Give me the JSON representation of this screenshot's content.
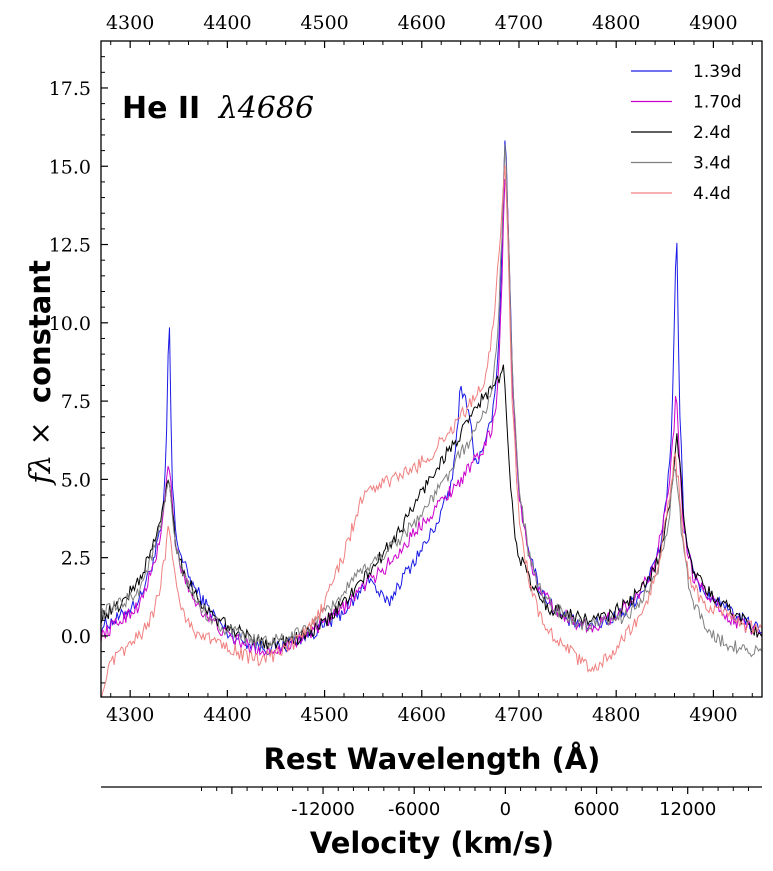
{
  "chart_data": {
    "type": "line",
    "title": "He II",
    "title_math": "λ4686",
    "xlabel": "Rest Wavelength (Å)",
    "ylabel_math": "fλ ×",
    "ylabel_text": "constant",
    "x2label": "Velocity (km/s)",
    "xlim": [
      4270,
      4950
    ],
    "ylim": [
      -1.95,
      19
    ],
    "xticks": [
      4300,
      4400,
      4500,
      4600,
      4700,
      4800,
      4900
    ],
    "yticks": [
      0.0,
      2.5,
      5.0,
      7.5,
      10.0,
      12.5,
      15.0,
      17.5
    ],
    "ytick_labels": [
      "0.0",
      "2.5",
      "5.0",
      "7.5",
      "10.0",
      "12.5",
      "15.0",
      "17.5"
    ],
    "velocity_ticks": [
      {
        "label": "-12000",
        "wavelength": 4498.4
      },
      {
        "label": "-6000",
        "wavelength": 4592.2
      },
      {
        "label": "0",
        "wavelength": 4686
      },
      {
        "label": "6000",
        "wavelength": 4779.8
      },
      {
        "label": "12000",
        "wavelength": 4873.6
      }
    ],
    "legend_position": "top-right",
    "series": [
      {
        "name": "1.39d",
        "color": "#1a1ae6",
        "points": [
          [
            4270,
            0.3
          ],
          [
            4290,
            0.6
          ],
          [
            4310,
            1.2
          ],
          [
            4325,
            2.5
          ],
          [
            4333,
            3.6
          ],
          [
            4337,
            5.6
          ],
          [
            4340,
            10.7
          ],
          [
            4343,
            5.0
          ],
          [
            4347,
            3.2
          ],
          [
            4355,
            2.3
          ],
          [
            4365,
            1.6
          ],
          [
            4380,
            0.9
          ],
          [
            4400,
            0.1
          ],
          [
            4420,
            -0.2
          ],
          [
            4440,
            -0.4
          ],
          [
            4460,
            -0.3
          ],
          [
            4480,
            0.0
          ],
          [
            4500,
            0.3
          ],
          [
            4520,
            0.8
          ],
          [
            4535,
            1.3
          ],
          [
            4545,
            1.9
          ],
          [
            4555,
            1.4
          ],
          [
            4565,
            1.0
          ],
          [
            4575,
            1.6
          ],
          [
            4590,
            2.3
          ],
          [
            4605,
            3.0
          ],
          [
            4620,
            3.9
          ],
          [
            4632,
            5.0
          ],
          [
            4640,
            8.0
          ],
          [
            4648,
            7.3
          ],
          [
            4655,
            5.5
          ],
          [
            4665,
            6.0
          ],
          [
            4675,
            7.5
          ],
          [
            4680,
            10.0
          ],
          [
            4683,
            13.0
          ],
          [
            4686,
            16.5
          ],
          [
            4689,
            13.0
          ],
          [
            4693,
            8.5
          ],
          [
            4700,
            4.5
          ],
          [
            4710,
            2.8
          ],
          [
            4720,
            1.6
          ],
          [
            4735,
            0.9
          ],
          [
            4750,
            0.5
          ],
          [
            4770,
            0.3
          ],
          [
            4790,
            0.5
          ],
          [
            4810,
            0.8
          ],
          [
            4830,
            1.6
          ],
          [
            4845,
            2.8
          ],
          [
            4852,
            4.5
          ],
          [
            4857,
            6.5
          ],
          [
            4860,
            10.0
          ],
          [
            4862,
            13.4
          ],
          [
            4865,
            7.5
          ],
          [
            4870,
            3.5
          ],
          [
            4880,
            1.8
          ],
          [
            4895,
            1.3
          ],
          [
            4910,
            0.9
          ],
          [
            4930,
            0.5
          ],
          [
            4950,
            0.2
          ]
        ]
      },
      {
        "name": "1.70d",
        "color": "#cc00cc",
        "points": [
          [
            4270,
            0.0
          ],
          [
            4290,
            0.5
          ],
          [
            4310,
            1.0
          ],
          [
            4325,
            2.3
          ],
          [
            4333,
            3.5
          ],
          [
            4337,
            4.8
          ],
          [
            4340,
            5.7
          ],
          [
            4343,
            4.2
          ],
          [
            4347,
            2.8
          ],
          [
            4355,
            1.9
          ],
          [
            4365,
            1.2
          ],
          [
            4380,
            0.6
          ],
          [
            4400,
            0.0
          ],
          [
            4420,
            -0.3
          ],
          [
            4440,
            -0.5
          ],
          [
            4460,
            -0.3
          ],
          [
            4480,
            0.0
          ],
          [
            4500,
            0.4
          ],
          [
            4520,
            0.9
          ],
          [
            4540,
            1.6
          ],
          [
            4560,
            2.1
          ],
          [
            4580,
            2.8
          ],
          [
            4600,
            3.6
          ],
          [
            4620,
            4.3
          ],
          [
            4640,
            5.0
          ],
          [
            4660,
            5.8
          ],
          [
            4672,
            6.6
          ],
          [
            4678,
            7.8
          ],
          [
            4682,
            11.0
          ],
          [
            4686,
            15.3
          ],
          [
            4689,
            13.0
          ],
          [
            4693,
            8.0
          ],
          [
            4700,
            4.5
          ],
          [
            4710,
            2.6
          ],
          [
            4720,
            1.5
          ],
          [
            4740,
            0.8
          ],
          [
            4760,
            0.4
          ],
          [
            4780,
            0.3
          ],
          [
            4800,
            0.7
          ],
          [
            4820,
            1.2
          ],
          [
            4838,
            2.2
          ],
          [
            4850,
            3.8
          ],
          [
            4857,
            5.6
          ],
          [
            4860,
            7.0
          ],
          [
            4862,
            7.9
          ],
          [
            4865,
            5.5
          ],
          [
            4870,
            3.2
          ],
          [
            4880,
            1.8
          ],
          [
            4900,
            1.1
          ],
          [
            4920,
            0.5
          ],
          [
            4950,
            0.1
          ]
        ]
      },
      {
        "name": "2.4d",
        "color": "#000000",
        "points": [
          [
            4270,
            0.6
          ],
          [
            4290,
            1.0
          ],
          [
            4310,
            1.8
          ],
          [
            4325,
            3.0
          ],
          [
            4333,
            3.9
          ],
          [
            4337,
            4.7
          ],
          [
            4340,
            5.0
          ],
          [
            4343,
            4.2
          ],
          [
            4347,
            3.0
          ],
          [
            4355,
            2.0
          ],
          [
            4370,
            1.2
          ],
          [
            4385,
            0.6
          ],
          [
            4400,
            0.3
          ],
          [
            4420,
            0.0
          ],
          [
            4440,
            -0.2
          ],
          [
            4460,
            -0.2
          ],
          [
            4480,
            0.0
          ],
          [
            4500,
            0.4
          ],
          [
            4520,
            1.1
          ],
          [
            4540,
            1.8
          ],
          [
            4560,
            2.6
          ],
          [
            4580,
            3.5
          ],
          [
            4600,
            4.6
          ],
          [
            4620,
            5.6
          ],
          [
            4640,
            6.4
          ],
          [
            4660,
            7.5
          ],
          [
            4672,
            7.9
          ],
          [
            4680,
            8.2
          ],
          [
            4684,
            8.6
          ],
          [
            4687,
            7.0
          ],
          [
            4690,
            5.5
          ],
          [
            4695,
            3.5
          ],
          [
            4700,
            2.6
          ],
          [
            4715,
            1.5
          ],
          [
            4730,
            0.9
          ],
          [
            4750,
            0.7
          ],
          [
            4770,
            0.5
          ],
          [
            4790,
            0.6
          ],
          [
            4810,
            1.0
          ],
          [
            4830,
            1.6
          ],
          [
            4845,
            2.6
          ],
          [
            4853,
            3.8
          ],
          [
            4858,
            5.0
          ],
          [
            4862,
            6.4
          ],
          [
            4866,
            5.5
          ],
          [
            4870,
            3.5
          ],
          [
            4880,
            2.0
          ],
          [
            4900,
            1.2
          ],
          [
            4920,
            0.8
          ],
          [
            4940,
            0.3
          ],
          [
            4950,
            0.0
          ]
        ]
      },
      {
        "name": "3.4d",
        "color": "#808080",
        "points": [
          [
            4270,
            0.7
          ],
          [
            4290,
            1.0
          ],
          [
            4310,
            1.5
          ],
          [
            4325,
            2.8
          ],
          [
            4333,
            3.7
          ],
          [
            4337,
            4.5
          ],
          [
            4340,
            4.9
          ],
          [
            4343,
            3.9
          ],
          [
            4347,
            2.8
          ],
          [
            4355,
            1.9
          ],
          [
            4370,
            1.0
          ],
          [
            4385,
            0.5
          ],
          [
            4400,
            0.2
          ],
          [
            4420,
            -0.1
          ],
          [
            4440,
            -0.2
          ],
          [
            4460,
            -0.1
          ],
          [
            4480,
            0.2
          ],
          [
            4500,
            0.7
          ],
          [
            4520,
            1.4
          ],
          [
            4540,
            2.1
          ],
          [
            4560,
            2.6
          ],
          [
            4580,
            3.2
          ],
          [
            4600,
            3.9
          ],
          [
            4620,
            4.8
          ],
          [
            4640,
            5.8
          ],
          [
            4660,
            6.8
          ],
          [
            4672,
            7.8
          ],
          [
            4678,
            9.5
          ],
          [
            4682,
            12.5
          ],
          [
            4686,
            16.0
          ],
          [
            4689,
            13.0
          ],
          [
            4693,
            8.5
          ],
          [
            4700,
            4.8
          ],
          [
            4710,
            2.6
          ],
          [
            4720,
            1.5
          ],
          [
            4740,
            0.8
          ],
          [
            4760,
            0.4
          ],
          [
            4780,
            0.3
          ],
          [
            4800,
            0.5
          ],
          [
            4820,
            0.9
          ],
          [
            4840,
            1.8
          ],
          [
            4850,
            2.9
          ],
          [
            4856,
            4.2
          ],
          [
            4860,
            5.5
          ],
          [
            4864,
            4.5
          ],
          [
            4868,
            3.0
          ],
          [
            4875,
            1.5
          ],
          [
            4885,
            0.7
          ],
          [
            4895,
            0.2
          ],
          [
            4910,
            -0.2
          ],
          [
            4930,
            -0.4
          ],
          [
            4950,
            -0.5
          ]
        ]
      },
      {
        "name": "4.4d",
        "color": "#f08080",
        "points": [
          [
            4270,
            -1.9
          ],
          [
            4280,
            -0.9
          ],
          [
            4295,
            -0.4
          ],
          [
            4310,
            0.0
          ],
          [
            4322,
            0.6
          ],
          [
            4330,
            1.4
          ],
          [
            4336,
            2.6
          ],
          [
            4340,
            3.6
          ],
          [
            4344,
            2.6
          ],
          [
            4348,
            1.5
          ],
          [
            4355,
            0.7
          ],
          [
            4365,
            0.2
          ],
          [
            4380,
            -0.1
          ],
          [
            4395,
            -0.2
          ],
          [
            4410,
            -0.5
          ],
          [
            4430,
            -0.8
          ],
          [
            4450,
            -0.6
          ],
          [
            4465,
            -0.3
          ],
          [
            4480,
            0.1
          ],
          [
            4495,
            0.7
          ],
          [
            4505,
            1.5
          ],
          [
            4520,
            2.6
          ],
          [
            4530,
            3.6
          ],
          [
            4540,
            4.5
          ],
          [
            4555,
            4.8
          ],
          [
            4570,
            5.0
          ],
          [
            4590,
            5.3
          ],
          [
            4610,
            5.8
          ],
          [
            4625,
            6.4
          ],
          [
            4640,
            7.0
          ],
          [
            4655,
            7.6
          ],
          [
            4665,
            8.2
          ],
          [
            4673,
            9.8
          ],
          [
            4680,
            12.5
          ],
          [
            4686,
            15.2
          ],
          [
            4690,
            11.0
          ],
          [
            4693,
            7.5
          ],
          [
            4700,
            3.8
          ],
          [
            4710,
            1.8
          ],
          [
            4720,
            0.8
          ],
          [
            4735,
            0.0
          ],
          [
            4750,
            -0.4
          ],
          [
            4765,
            -0.9
          ],
          [
            4780,
            -1.0
          ],
          [
            4795,
            -0.6
          ],
          [
            4810,
            0.0
          ],
          [
            4825,
            0.6
          ],
          [
            4835,
            1.4
          ],
          [
            4845,
            2.5
          ],
          [
            4852,
            3.8
          ],
          [
            4857,
            5.0
          ],
          [
            4860,
            5.8
          ],
          [
            4864,
            5.0
          ],
          [
            4868,
            3.2
          ],
          [
            4875,
            1.8
          ],
          [
            4890,
            1.0
          ],
          [
            4910,
            0.7
          ],
          [
            4930,
            0.3
          ],
          [
            4950,
            0.2
          ]
        ]
      }
    ]
  }
}
